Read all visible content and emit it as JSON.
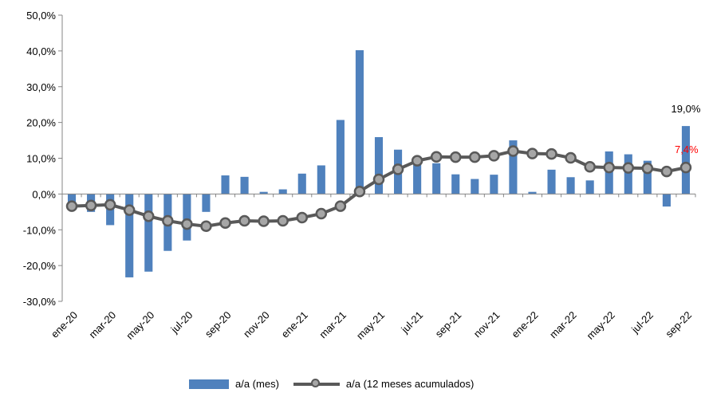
{
  "chart_data": {
    "type": "bar+line",
    "categories": [
      "ene-20",
      "feb-20",
      "mar-20",
      "abr-20",
      "may-20",
      "jun-20",
      "jul-20",
      "ago-20",
      "sep-20",
      "oct-20",
      "nov-20",
      "dic-20",
      "ene-21",
      "feb-21",
      "mar-21",
      "abr-21",
      "may-21",
      "jun-21",
      "jul-21",
      "ago-21",
      "sep-21",
      "oct-21",
      "nov-21",
      "dic-21",
      "ene-22",
      "feb-22",
      "mar-22",
      "abr-22",
      "may-22",
      "jun-22",
      "jul-22",
      "ago-22",
      "sep-22"
    ],
    "x_tick_labels": [
      "ene-20",
      "mar-20",
      "may-20",
      "jul-20",
      "sep-20",
      "nov-20",
      "ene-21",
      "mar-21",
      "may-21",
      "jul-21",
      "sep-21",
      "nov-21",
      "ene-22",
      "mar-22",
      "may-22",
      "jul-22",
      "sep-22"
    ],
    "y_tick_labels": [
      "50,0%",
      "40,0%",
      "30,0%",
      "20,0%",
      "10,0%",
      "0,0%",
      "-10,0%",
      "-20,0%",
      "-30,0%"
    ],
    "ylim": [
      -30,
      50
    ],
    "y_ticks": [
      50,
      40,
      30,
      20,
      10,
      0,
      -10,
      -20,
      -30
    ],
    "series": [
      {
        "name": "a/a (mes)",
        "kind": "bar",
        "color": "#4f81bd",
        "values": [
          -4.0,
          -5.0,
          -8.7,
          -23.3,
          -21.7,
          -15.9,
          -13.0,
          -5.0,
          5.2,
          4.8,
          0.6,
          1.3,
          5.7,
          8.0,
          20.7,
          40.2,
          15.9,
          12.4,
          10.1,
          8.6,
          5.5,
          4.2,
          5.4,
          15.0,
          0.6,
          6.8,
          4.7,
          3.8,
          11.9,
          11.1,
          9.3,
          -3.5,
          19.0
        ]
      },
      {
        "name": "a/a (12 meses acumulados)",
        "kind": "line",
        "color": "#595959",
        "marker_color": "#a6a6a6",
        "values": [
          -3.4,
          -3.2,
          -3.0,
          -4.5,
          -6.2,
          -7.5,
          -8.4,
          -9.0,
          -8.1,
          -7.5,
          -7.6,
          -7.5,
          -6.6,
          -5.5,
          -3.4,
          0.7,
          4.1,
          6.9,
          9.3,
          10.4,
          10.3,
          10.3,
          10.7,
          12.0,
          11.3,
          11.2,
          10.1,
          7.6,
          7.4,
          7.3,
          7.2,
          6.3,
          7.4
        ]
      }
    ],
    "annotations": [
      {
        "text": "19,0%",
        "series": "a/a (mes)",
        "color": "#000000"
      },
      {
        "text": "7,4%",
        "series": "a/a (12 meses acumulados)",
        "color": "#ff0000"
      }
    ],
    "legend": {
      "placement": "bottom"
    },
    "grid": false
  }
}
